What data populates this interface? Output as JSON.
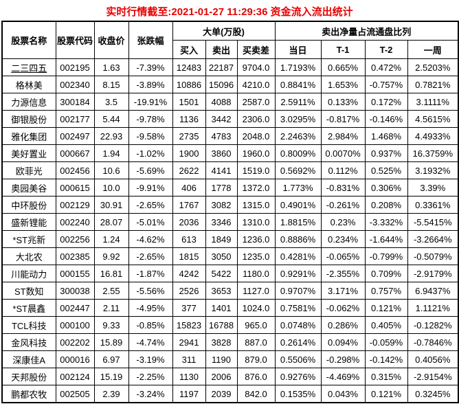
{
  "title": "实时行情截至:2021-01-27 11:29:36 资金流入流出统计",
  "colors": {
    "title_red": "#e60000",
    "stock_link_blue": "#15639c",
    "grid_border": "#000000",
    "background": "#ffffff"
  },
  "table": {
    "headers": {
      "name": "股票名称",
      "code": "股票代码",
      "close": "收盘价",
      "change": "张跌幅",
      "big_order_group": "大单(万股)",
      "buy": "买入",
      "sell": "卖出",
      "diff": "买卖差",
      "net_sell_group": "卖出净量占流通盘比列",
      "day": "当日",
      "t1": "T-1",
      "t2": "T-2",
      "week": "一周"
    },
    "underlined_names": [
      "二三四五"
    ],
    "rows": [
      [
        "二三四五",
        "002195",
        "1.63",
        "-7.39%",
        "12483",
        "22187",
        "9704.0",
        "1.7193%",
        "0.665%",
        "0.472%",
        "2.5203%"
      ],
      [
        "格林美",
        "002340",
        "8.15",
        "-3.89%",
        "10886",
        "15096",
        "4210.0",
        "0.8841%",
        "1.653%",
        "-0.757%",
        "0.7821%"
      ],
      [
        "力源信息",
        "300184",
        "3.5",
        "-19.91%",
        "1501",
        "4088",
        "2587.0",
        "2.5911%",
        "0.133%",
        "0.172%",
        "3.1111%"
      ],
      [
        "御银股份",
        "002177",
        "5.44",
        "-9.78%",
        "1136",
        "3442",
        "2306.0",
        "3.0295%",
        "-0.817%",
        "-0.146%",
        "4.5615%"
      ],
      [
        "雅化集团",
        "002497",
        "22.93",
        "-9.58%",
        "2735",
        "4783",
        "2048.0",
        "2.2463%",
        "2.984%",
        "1.468%",
        "4.4933%"
      ],
      [
        "美好置业",
        "000667",
        "1.94",
        "-1.02%",
        "1900",
        "3860",
        "1960.0",
        "0.8009%",
        "0.0070%",
        "0.937%",
        "16.3759%"
      ],
      [
        "欧菲光",
        "002456",
        "10.6",
        "-5.69%",
        "2622",
        "4141",
        "1519.0",
        "0.5692%",
        "0.112%",
        "0.525%",
        "3.1932%"
      ],
      [
        "奥园美谷",
        "000615",
        "10.0",
        "-9.91%",
        "406",
        "1778",
        "1372.0",
        "1.773%",
        "-0.831%",
        "0.306%",
        "3.39%"
      ],
      [
        "中环股份",
        "002129",
        "30.91",
        "-2.65%",
        "1767",
        "3082",
        "1315.0",
        "0.4901%",
        "-0.261%",
        "0.208%",
        "0.3361%"
      ],
      [
        "盛新锂能",
        "002240",
        "28.07",
        "-5.01%",
        "2036",
        "3346",
        "1310.0",
        "1.8815%",
        "0.23%",
        "-3.332%",
        "-5.5415%"
      ],
      [
        "*ST兆新",
        "002256",
        "1.24",
        "-4.62%",
        "613",
        "1849",
        "1236.0",
        "0.8886%",
        "0.234%",
        "-1.644%",
        "-3.2664%"
      ],
      [
        "大北农",
        "002385",
        "9.92",
        "-2.65%",
        "1815",
        "3050",
        "1235.0",
        "0.4281%",
        "-0.065%",
        "-0.799%",
        "-0.5079%"
      ],
      [
        "川能动力",
        "000155",
        "16.81",
        "-1.87%",
        "4242",
        "5422",
        "1180.0",
        "0.9291%",
        "-2.355%",
        "0.709%",
        "-2.9179%"
      ],
      [
        "ST数知",
        "300038",
        "2.55",
        "-5.56%",
        "2526",
        "3653",
        "1127.0",
        "0.9707%",
        "3.171%",
        "0.757%",
        "6.9437%"
      ],
      [
        "*ST晨鑫",
        "002447",
        "2.11",
        "-4.95%",
        "377",
        "1401",
        "1024.0",
        "0.7581%",
        "-0.062%",
        "0.121%",
        "1.1121%"
      ],
      [
        "TCL科技",
        "000100",
        "9.33",
        "-0.85%",
        "15823",
        "16788",
        "965.0",
        "0.0748%",
        "0.286%",
        "0.405%",
        "-0.1282%"
      ],
      [
        "金风科技",
        "002202",
        "15.89",
        "-4.74%",
        "2941",
        "3828",
        "887.0",
        "0.2614%",
        "0.094%",
        "-0.059%",
        "-0.7846%"
      ],
      [
        "深康佳A",
        "000016",
        "6.97",
        "-3.19%",
        "311",
        "1190",
        "879.0",
        "0.5506%",
        "-0.298%",
        "-0.142%",
        "0.4056%"
      ],
      [
        "天邦股份",
        "002124",
        "15.19",
        "-2.25%",
        "1130",
        "2006",
        "876.0",
        "0.9276%",
        "-4.469%",
        "0.315%",
        "-2.9154%"
      ],
      [
        "鹏都农牧",
        "002505",
        "2.39",
        "-3.24%",
        "1197",
        "2039",
        "842.0",
        "0.1535%",
        "0.043%",
        "0.121%",
        "0.3245%"
      ]
    ]
  }
}
